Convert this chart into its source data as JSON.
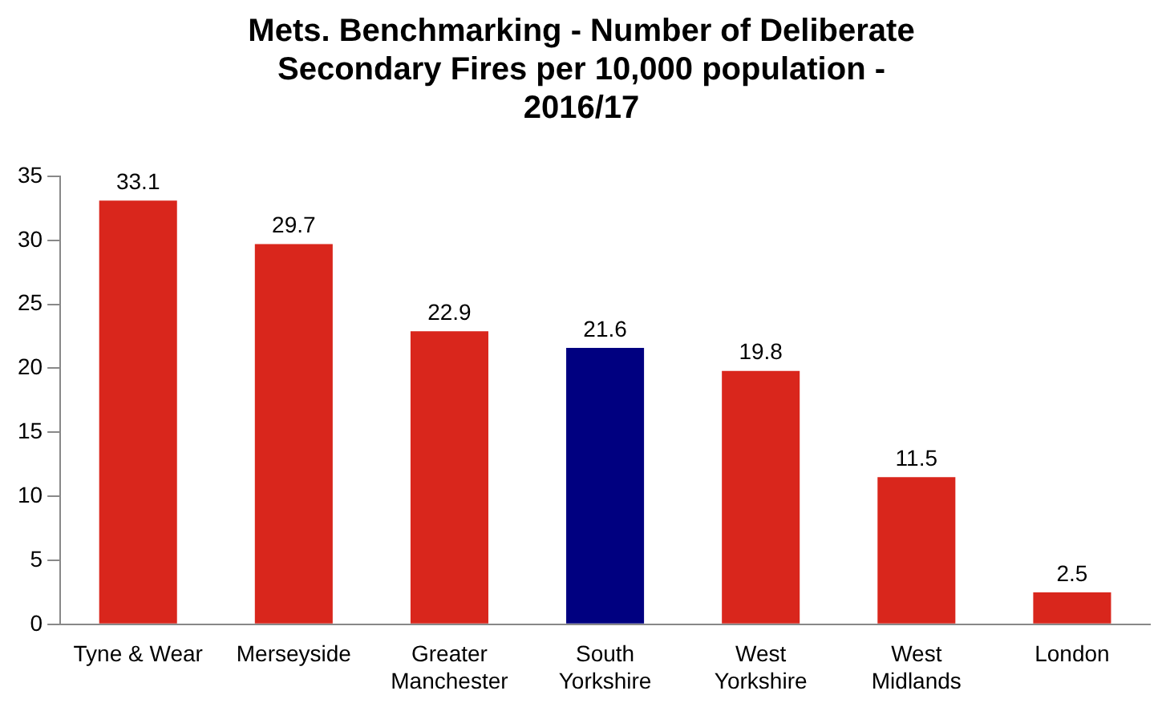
{
  "chart_data": {
    "type": "bar",
    "title": "Mets. Benchmarking - Number of Deliberate Secondary Fires per 10,000 population - 2016/17",
    "categories": [
      "Tyne & Wear",
      "Merseyside",
      "Greater Manchester",
      "South Yorkshire",
      "West Yorkshire",
      "West Midlands",
      "London"
    ],
    "values": [
      33.1,
      29.7,
      22.9,
      21.6,
      19.8,
      11.5,
      2.5
    ],
    "colors": [
      "#d9261c",
      "#d9261c",
      "#d9261c",
      "#000080",
      "#d9261c",
      "#d9261c",
      "#d9261c"
    ],
    "ylim": [
      0,
      35
    ],
    "yticks": [
      0,
      5,
      10,
      15,
      20,
      25,
      30,
      35
    ],
    "grid": false,
    "legend": false,
    "data_labels": true
  }
}
